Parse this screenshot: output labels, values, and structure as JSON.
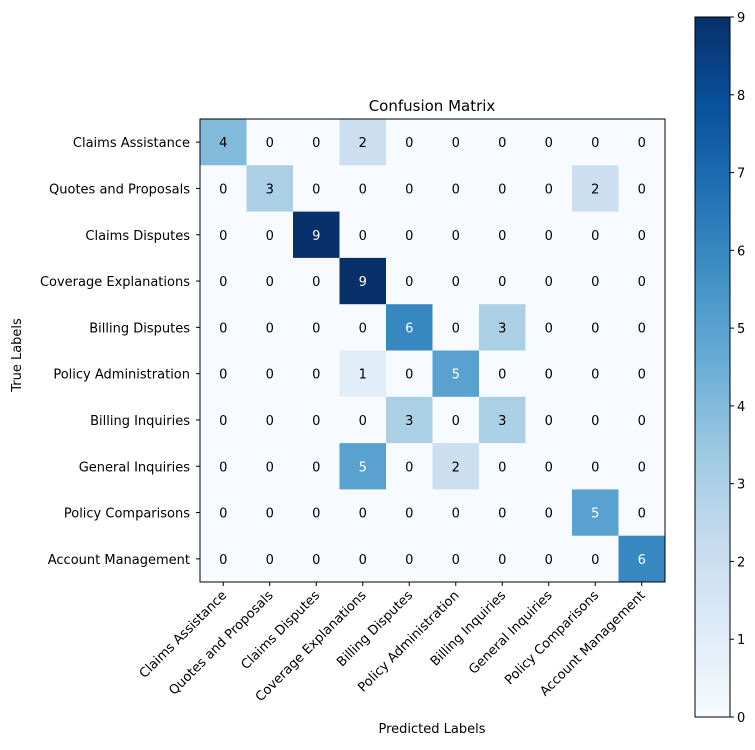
{
  "chart_data": {
    "type": "heatmap",
    "title": "Confusion Matrix",
    "xlabel": "Predicted Labels",
    "ylabel": "True Labels",
    "row_labels": [
      "Claims Assistance",
      "Quotes and Proposals",
      "Claims Disputes",
      "Coverage Explanations",
      "Billing Disputes",
      "Policy Administration",
      "Billing Inquiries",
      "General Inquiries",
      "Policy Comparisons",
      "Account Management"
    ],
    "col_labels": [
      "Claims Assistance",
      "Quotes and Proposals",
      "Claims Disputes",
      "Coverage Explanations",
      "Billing Disputes",
      "Policy Administration",
      "Billing Inquiries",
      "General Inquiries",
      "Policy Comparisons",
      "Account Management"
    ],
    "matrix": [
      [
        4,
        0,
        0,
        2,
        0,
        0,
        0,
        0,
        0,
        0
      ],
      [
        0,
        3,
        0,
        0,
        0,
        0,
        0,
        0,
        2,
        0
      ],
      [
        0,
        0,
        9,
        0,
        0,
        0,
        0,
        0,
        0,
        0
      ],
      [
        0,
        0,
        0,
        9,
        0,
        0,
        0,
        0,
        0,
        0
      ],
      [
        0,
        0,
        0,
        0,
        6,
        0,
        3,
        0,
        0,
        0
      ],
      [
        0,
        0,
        0,
        1,
        0,
        5,
        0,
        0,
        0,
        0
      ],
      [
        0,
        0,
        0,
        0,
        3,
        0,
        3,
        0,
        0,
        0
      ],
      [
        0,
        0,
        0,
        5,
        0,
        2,
        0,
        0,
        0,
        0
      ],
      [
        0,
        0,
        0,
        0,
        0,
        0,
        0,
        0,
        5,
        0
      ],
      [
        0,
        0,
        0,
        0,
        0,
        0,
        0,
        0,
        0,
        6
      ]
    ],
    "colorbar": {
      "min": 0,
      "max": 9,
      "ticks": [
        0,
        1,
        2,
        3,
        4,
        5,
        6,
        7,
        8,
        9
      ],
      "colormap": "Blues"
    }
  }
}
